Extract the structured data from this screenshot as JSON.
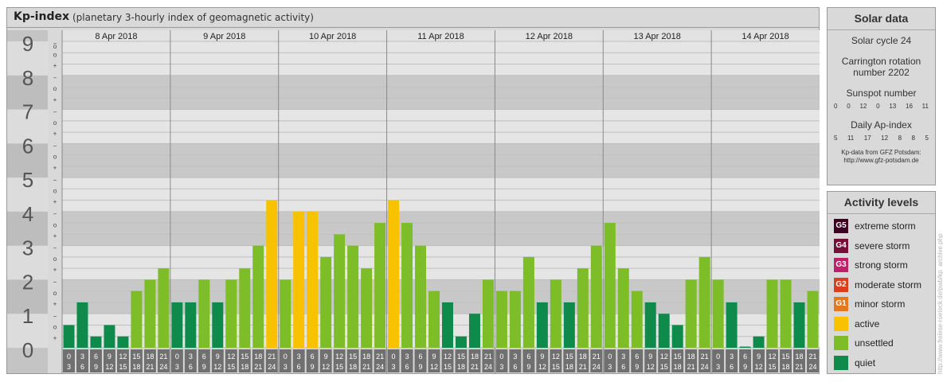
{
  "header": {
    "title": "Kp-index",
    "subtitle": "(planetary 3-hourly index of geomagnetic activity)"
  },
  "chart_data": {
    "type": "bar",
    "title": "Kp-index",
    "subtitle": "(planetary 3-hourly index of geomagnetic activity)",
    "ylim": [
      0,
      9
    ],
    "y_ticks": [
      "0",
      "1",
      "2",
      "3",
      "4",
      "5",
      "6",
      "7",
      "8",
      "9"
    ],
    "thirds_labels": [
      "+",
      "o",
      "−"
    ],
    "days": [
      "8 Apr 2018",
      "9 Apr 2018",
      "10 Apr 2018",
      "11 Apr 2018",
      "12 Apr 2018",
      "13 Apr 2018",
      "14 Apr 2018"
    ],
    "interval_starts": [
      "0",
      "3",
      "6",
      "9",
      "12",
      "15",
      "18",
      "21"
    ],
    "interval_ends": [
      "3",
      "6",
      "9",
      "12",
      "15",
      "18",
      "21",
      "24"
    ],
    "series": [
      {
        "values": [
          0.667,
          1.333,
          0.333,
          0.667,
          0.333,
          1.667,
          2.0,
          2.333,
          1.333,
          1.333,
          2.0,
          1.333,
          2.0,
          2.333,
          3.0,
          4.333,
          2.0,
          4.0,
          4.0,
          2.667,
          3.333,
          3.0,
          2.333,
          3.667,
          4.333,
          3.667,
          3.0,
          1.667,
          1.333,
          0.333,
          1.0,
          2.0,
          1.667,
          1.667,
          2.667,
          1.333,
          2.0,
          1.333,
          2.333,
          3.0,
          3.667,
          2.333,
          1.667,
          1.333,
          1.0,
          0.667,
          2.0,
          2.667,
          2.0,
          1.333,
          0.0,
          0.333,
          2.0,
          2.0,
          1.333,
          1.667
        ]
      }
    ],
    "colors": {
      "quiet": "#0e8a4a",
      "unsettled": "#7cbd28",
      "active": "#f8c200",
      "background_even": "#e5e5e5",
      "background_odd": "#c8c8c8"
    }
  },
  "solar": {
    "heading": "Solar data",
    "cycle": "Solar cycle 24",
    "carrington_line1": "Carrington rotation",
    "carrington_line2": "number 2202",
    "sunspot_label": "Sunspot number",
    "sunspot_values": [
      "0",
      "0",
      "12",
      "0",
      "13",
      "16",
      "11"
    ],
    "ap_label": "Daily Ap-index",
    "ap_values": [
      "5",
      "11",
      "17",
      "12",
      "8",
      "8",
      "5"
    ],
    "source_line1": "Kp-data from GFZ Potsdam:",
    "source_line2": "http://www.gfz-potsdam.de"
  },
  "activity": {
    "heading": "Activity levels",
    "levels": [
      {
        "code": "G5",
        "label": "extreme storm",
        "color": "#3d0020"
      },
      {
        "code": "G4",
        "label": "severe storm",
        "color": "#7a0c3a"
      },
      {
        "code": "G3",
        "label": "strong storm",
        "color": "#c21f6a"
      },
      {
        "code": "G2",
        "label": "moderate storm",
        "color": "#d8401c"
      },
      {
        "code": "G1",
        "label": "minor storm",
        "color": "#e8781c"
      },
      {
        "code": "",
        "label": "active",
        "color": "#f8c200"
      },
      {
        "code": "",
        "label": "unsettled",
        "color": "#7cbd28"
      },
      {
        "code": "",
        "label": "quiet",
        "color": "#0e8a4a"
      }
    ]
  },
  "credit": "http://www.freiese-roeteck.de/pwb/kp_archive.php"
}
